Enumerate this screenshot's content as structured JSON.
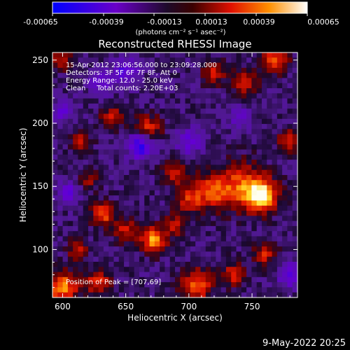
{
  "colorbar": {
    "ticks": [
      "-0.00065",
      "-0.00039",
      "-0.00013",
      "0.00013",
      "0.00039",
      "0.00065"
    ],
    "unit_label": "(photons cm⁻² s⁻¹ asec⁻²)"
  },
  "chart_data": {
    "type": "heatmap",
    "title": "Reconstructed RHESSI Image",
    "xlabel": "Heliocentric X (arcsec)",
    "ylabel": "Heliocentric Y (arcsec)",
    "xlim": [
      592,
      786
    ],
    "ylim": [
      62,
      256
    ],
    "xticks": [
      600,
      650,
      700,
      750
    ],
    "yticks": [
      100,
      150,
      200,
      250
    ],
    "value_range": [
      -0.00065,
      0.00065
    ],
    "colormap": "blue-purple-red-orange-yellow-white",
    "grid": false,
    "annotations": [
      "15-Apr-2012 23:06:56.000 to 23:09:28.000",
      "Detectors: 3F 5F 6F 7F 8F, Att 0",
      "Energy Range: 12.0 - 25.0 keV",
      "Clean     Total counts: 2.20E+03"
    ],
    "peak_label": "Position of Peak = [707,69]",
    "peak_position": [
      707,
      69
    ],
    "blobs": [
      {
        "x": 758,
        "y": 143,
        "v": 0.00065,
        "r": 12
      },
      {
        "x": 742,
        "y": 150,
        "v": 0.0004,
        "r": 18
      },
      {
        "x": 718,
        "y": 146,
        "v": 0.00038,
        "r": 14
      },
      {
        "x": 700,
        "y": 140,
        "v": 0.00032,
        "r": 10
      },
      {
        "x": 690,
        "y": 160,
        "v": 0.00028,
        "r": 10
      },
      {
        "x": 672,
        "y": 108,
        "v": 0.00052,
        "r": 10
      },
      {
        "x": 650,
        "y": 115,
        "v": 0.0003,
        "r": 9
      },
      {
        "x": 632,
        "y": 128,
        "v": 0.00042,
        "r": 9
      },
      {
        "x": 612,
        "y": 100,
        "v": 0.0003,
        "r": 8
      },
      {
        "x": 600,
        "y": 70,
        "v": 0.0005,
        "r": 12
      },
      {
        "x": 628,
        "y": 74,
        "v": 0.00035,
        "r": 10
      },
      {
        "x": 706,
        "y": 72,
        "v": 0.00045,
        "r": 12
      },
      {
        "x": 735,
        "y": 80,
        "v": 0.00032,
        "r": 9
      },
      {
        "x": 760,
        "y": 96,
        "v": 0.0003,
        "r": 9
      },
      {
        "x": 745,
        "y": 232,
        "v": 0.0003,
        "r": 10
      },
      {
        "x": 768,
        "y": 250,
        "v": 0.0004,
        "r": 10
      },
      {
        "x": 720,
        "y": 240,
        "v": 0.00028,
        "r": 9
      },
      {
        "x": 668,
        "y": 196,
        "v": 0.00035,
        "r": 10
      },
      {
        "x": 640,
        "y": 205,
        "v": 0.0003,
        "r": 9
      },
      {
        "x": 614,
        "y": 186,
        "v": 0.00026,
        "r": 8
      },
      {
        "x": 598,
        "y": 250,
        "v": 0.0003,
        "r": 8
      },
      {
        "x": 780,
        "y": 186,
        "v": 0.00034,
        "r": 9
      },
      {
        "x": 690,
        "y": 120,
        "v": 0.00028,
        "r": 9
      },
      {
        "x": 620,
        "y": 155,
        "v": 0.00022,
        "r": 8
      },
      {
        "x": 650,
        "y": 240,
        "v": -0.00032,
        "r": 10
      },
      {
        "x": 662,
        "y": 182,
        "v": -0.00045,
        "r": 10
      },
      {
        "x": 700,
        "y": 185,
        "v": -0.00028,
        "r": 10
      },
      {
        "x": 630,
        "y": 232,
        "v": -0.0003,
        "r": 9
      },
      {
        "x": 600,
        "y": 210,
        "v": -0.00026,
        "r": 9
      },
      {
        "x": 605,
        "y": 145,
        "v": -0.00026,
        "r": 9
      },
      {
        "x": 780,
        "y": 80,
        "v": -0.0003,
        "r": 10
      },
      {
        "x": 740,
        "y": 205,
        "v": -0.00024,
        "r": 9
      }
    ]
  },
  "footer_date": "9-May-2022 20:25"
}
